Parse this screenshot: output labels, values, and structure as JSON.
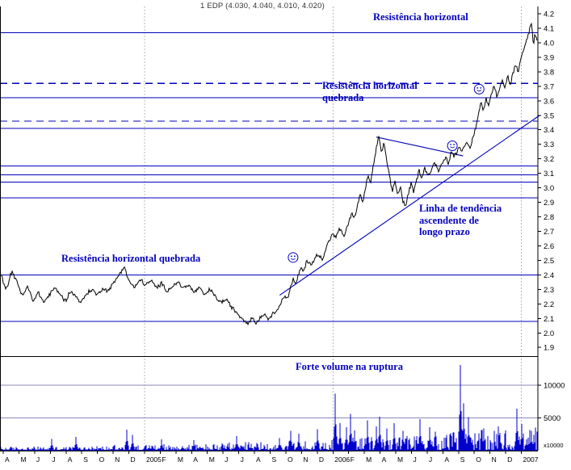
{
  "title": "1 EDP (4.030, 4.040, 4.010, 4.020)",
  "colors": {
    "background": "#ffffff",
    "blue": "#0000bb",
    "annotation": "#0000bb",
    "price": "#000000",
    "volume": "#0000cc",
    "axis": "#000000",
    "year_grid": "#b8b8b8",
    "volume_grid": "#8888bb",
    "title_text": "#333333"
  },
  "annotations": {
    "res_top": "Resistência horizontal",
    "res_broken_upper": "Resistência horizontal\nquebrada",
    "trend": "Linha de tendência\nascendente de\nlongo prazo",
    "res_broken_lower": "Resistência horizontal quebrada",
    "volume_note": "Forte volume na ruptura"
  },
  "chart_data": {
    "type": "line",
    "title": "1 EDP (4.030, 4.040, 4.010, 4.020)",
    "instrument": "EDP",
    "last_ohlc": {
      "open": 4.03,
      "high": 4.04,
      "low": 4.01,
      "close": 4.02
    },
    "ylim": [
      1.84,
      4.25
    ],
    "y_ticks": [
      4.2,
      4.1,
      4.0,
      3.9,
      3.8,
      3.7,
      3.6,
      3.5,
      3.4,
      3.3,
      3.2,
      3.1,
      3.0,
      2.9,
      2.8,
      2.7,
      2.6,
      2.5,
      2.4,
      2.3,
      2.2,
      2.1,
      2.0,
      1.9
    ],
    "x_labels": [
      "A",
      "M",
      "J",
      "J",
      "A",
      "S",
      "O",
      "N",
      "D",
      "2005",
      "F",
      "M",
      "A",
      "M",
      "J",
      "J",
      "A",
      "S",
      "O",
      "N",
      "D",
      "2006",
      "F",
      "M",
      "A",
      "M",
      "J",
      "J",
      "A",
      "S",
      "O",
      "N",
      "D",
      "2007"
    ],
    "x_range": [
      "Apr 2004",
      "Feb 2007"
    ],
    "grid": "off",
    "legend": "none",
    "price_keypoints": [
      [
        0.0,
        2.4
      ],
      [
        0.01,
        2.3
      ],
      [
        0.02,
        2.42
      ],
      [
        0.03,
        2.36
      ],
      [
        0.04,
        2.25
      ],
      [
        0.05,
        2.32
      ],
      [
        0.06,
        2.22
      ],
      [
        0.07,
        2.28
      ],
      [
        0.08,
        2.21
      ],
      [
        0.09,
        2.26
      ],
      [
        0.1,
        2.31
      ],
      [
        0.11,
        2.27
      ],
      [
        0.12,
        2.22
      ],
      [
        0.13,
        2.29
      ],
      [
        0.14,
        2.25
      ],
      [
        0.15,
        2.21
      ],
      [
        0.16,
        2.27
      ],
      [
        0.17,
        2.3
      ],
      [
        0.18,
        2.26
      ],
      [
        0.19,
        2.31
      ],
      [
        0.2,
        2.29
      ],
      [
        0.21,
        2.34
      ],
      [
        0.22,
        2.4
      ],
      [
        0.23,
        2.46
      ],
      [
        0.235,
        2.4
      ],
      [
        0.24,
        2.35
      ],
      [
        0.25,
        2.31
      ],
      [
        0.26,
        2.37
      ],
      [
        0.27,
        2.33
      ],
      [
        0.28,
        2.36
      ],
      [
        0.29,
        2.31
      ],
      [
        0.3,
        2.34
      ],
      [
        0.31,
        2.29
      ],
      [
        0.32,
        2.32
      ],
      [
        0.33,
        2.35
      ],
      [
        0.34,
        2.31
      ],
      [
        0.35,
        2.33
      ],
      [
        0.36,
        2.28
      ],
      [
        0.37,
        2.31
      ],
      [
        0.38,
        2.26
      ],
      [
        0.39,
        2.3
      ],
      [
        0.4,
        2.25
      ],
      [
        0.41,
        2.21
      ],
      [
        0.42,
        2.23
      ],
      [
        0.43,
        2.18
      ],
      [
        0.44,
        2.14
      ],
      [
        0.45,
        2.1
      ],
      [
        0.46,
        2.07
      ],
      [
        0.47,
        2.11
      ],
      [
        0.475,
        2.06
      ],
      [
        0.48,
        2.09
      ],
      [
        0.49,
        2.13
      ],
      [
        0.5,
        2.1
      ],
      [
        0.51,
        2.14
      ],
      [
        0.52,
        2.19
      ],
      [
        0.53,
        2.26
      ],
      [
        0.535,
        2.24
      ],
      [
        0.54,
        2.31
      ],
      [
        0.545,
        2.37
      ],
      [
        0.55,
        2.33
      ],
      [
        0.555,
        2.4
      ],
      [
        0.56,
        2.45
      ],
      [
        0.565,
        2.42
      ],
      [
        0.57,
        2.5
      ],
      [
        0.58,
        2.47
      ],
      [
        0.59,
        2.54
      ],
      [
        0.6,
        2.51
      ],
      [
        0.605,
        2.57
      ],
      [
        0.61,
        2.62
      ],
      [
        0.62,
        2.69
      ],
      [
        0.625,
        2.65
      ],
      [
        0.63,
        2.72
      ],
      [
        0.64,
        2.67
      ],
      [
        0.65,
        2.77
      ],
      [
        0.655,
        2.83
      ],
      [
        0.66,
        2.79
      ],
      [
        0.665,
        2.88
      ],
      [
        0.67,
        2.95
      ],
      [
        0.675,
        2.9
      ],
      [
        0.68,
        3.0
      ],
      [
        0.685,
        3.08
      ],
      [
        0.69,
        3.04
      ],
      [
        0.695,
        3.16
      ],
      [
        0.7,
        3.27
      ],
      [
        0.705,
        3.35
      ],
      [
        0.71,
        3.24
      ],
      [
        0.715,
        3.31
      ],
      [
        0.72,
        3.17
      ],
      [
        0.725,
        3.07
      ],
      [
        0.73,
        2.97
      ],
      [
        0.735,
        3.05
      ],
      [
        0.74,
        2.95
      ],
      [
        0.745,
        3.01
      ],
      [
        0.75,
        2.91
      ],
      [
        0.755,
        2.87
      ],
      [
        0.76,
        2.96
      ],
      [
        0.765,
        3.03
      ],
      [
        0.77,
        2.97
      ],
      [
        0.775,
        3.05
      ],
      [
        0.78,
        3.12
      ],
      [
        0.785,
        3.07
      ],
      [
        0.79,
        3.14
      ],
      [
        0.795,
        3.1
      ],
      [
        0.8,
        3.09
      ],
      [
        0.805,
        3.15
      ],
      [
        0.81,
        3.17
      ],
      [
        0.815,
        3.12
      ],
      [
        0.82,
        3.14
      ],
      [
        0.825,
        3.19
      ],
      [
        0.83,
        3.21
      ],
      [
        0.835,
        3.16
      ],
      [
        0.84,
        3.26
      ],
      [
        0.845,
        3.22
      ],
      [
        0.85,
        3.24
      ],
      [
        0.855,
        3.3
      ],
      [
        0.86,
        3.25
      ],
      [
        0.865,
        3.28
      ],
      [
        0.87,
        3.31
      ],
      [
        0.875,
        3.27
      ],
      [
        0.88,
        3.34
      ],
      [
        0.885,
        3.41
      ],
      [
        0.89,
        3.49
      ],
      [
        0.895,
        3.59
      ],
      [
        0.9,
        3.53
      ],
      [
        0.905,
        3.62
      ],
      [
        0.91,
        3.57
      ],
      [
        0.915,
        3.65
      ],
      [
        0.92,
        3.71
      ],
      [
        0.925,
        3.63
      ],
      [
        0.93,
        3.69
      ],
      [
        0.935,
        3.75
      ],
      [
        0.94,
        3.69
      ],
      [
        0.945,
        3.77
      ],
      [
        0.95,
        3.71
      ],
      [
        0.955,
        3.79
      ],
      [
        0.96,
        3.85
      ],
      [
        0.965,
        3.79
      ],
      [
        0.97,
        3.89
      ],
      [
        0.975,
        3.95
      ],
      [
        0.98,
        4.01
      ],
      [
        0.985,
        4.08
      ],
      [
        0.99,
        4.14
      ],
      [
        0.993,
        3.97
      ],
      [
        0.996,
        4.07
      ],
      [
        1.0,
        4.02
      ]
    ],
    "resistance_lines": [
      {
        "price": 4.07,
        "style": "solid"
      },
      {
        "price": 3.72,
        "style": "dashed"
      },
      {
        "price": 3.62,
        "style": "solid"
      },
      {
        "price": 3.46,
        "style": "dashed"
      },
      {
        "price": 3.41,
        "style": "solid"
      },
      {
        "price": 3.15,
        "style": "solid"
      },
      {
        "price": 3.09,
        "style": "solid"
      },
      {
        "price": 3.04,
        "style": "solid"
      },
      {
        "price": 2.93,
        "style": "solid"
      },
      {
        "price": 2.4,
        "style": "solid"
      },
      {
        "price": 2.08,
        "style": "solid"
      }
    ],
    "trendlines": [
      {
        "name": "long-term-ascending",
        "from": [
          0.52,
          2.26
        ],
        "to": [
          1.005,
          3.5
        ]
      },
      {
        "name": "minor-descending",
        "from": [
          0.7,
          3.35
        ],
        "to": [
          0.862,
          3.22
        ]
      }
    ],
    "markers": [
      [
        0.545,
        2.52
      ],
      [
        0.842,
        3.29
      ],
      [
        0.892,
        3.68
      ]
    ],
    "volume": {
      "axis_ticks": [
        10000,
        5000
      ],
      "unit_label": "x10000",
      "spikes": [
        [
          0.095,
          1800
        ],
        [
          0.14,
          2100
        ],
        [
          0.235,
          3200
        ],
        [
          0.245,
          2400
        ],
        [
          0.3,
          1700
        ],
        [
          0.36,
          1600
        ],
        [
          0.44,
          2200
        ],
        [
          0.52,
          1900
        ],
        [
          0.54,
          3000
        ],
        [
          0.555,
          2600
        ],
        [
          0.59,
          3300
        ],
        [
          0.624,
          8700
        ],
        [
          0.632,
          4200
        ],
        [
          0.645,
          3600
        ],
        [
          0.652,
          5600
        ],
        [
          0.66,
          3100
        ],
        [
          0.683,
          4600
        ],
        [
          0.7,
          3700
        ],
        [
          0.707,
          5200
        ],
        [
          0.72,
          3400
        ],
        [
          0.733,
          4200
        ],
        [
          0.75,
          3000
        ],
        [
          0.782,
          4800
        ],
        [
          0.8,
          3600
        ],
        [
          0.81,
          2900
        ],
        [
          0.845,
          2800
        ],
        [
          0.857,
          13100
        ],
        [
          0.863,
          7200
        ],
        [
          0.872,
          5100
        ],
        [
          0.9,
          3400
        ],
        [
          0.93,
          2700
        ],
        [
          0.962,
          6400
        ],
        [
          0.972,
          4100
        ],
        [
          0.99,
          3000
        ]
      ]
    }
  }
}
